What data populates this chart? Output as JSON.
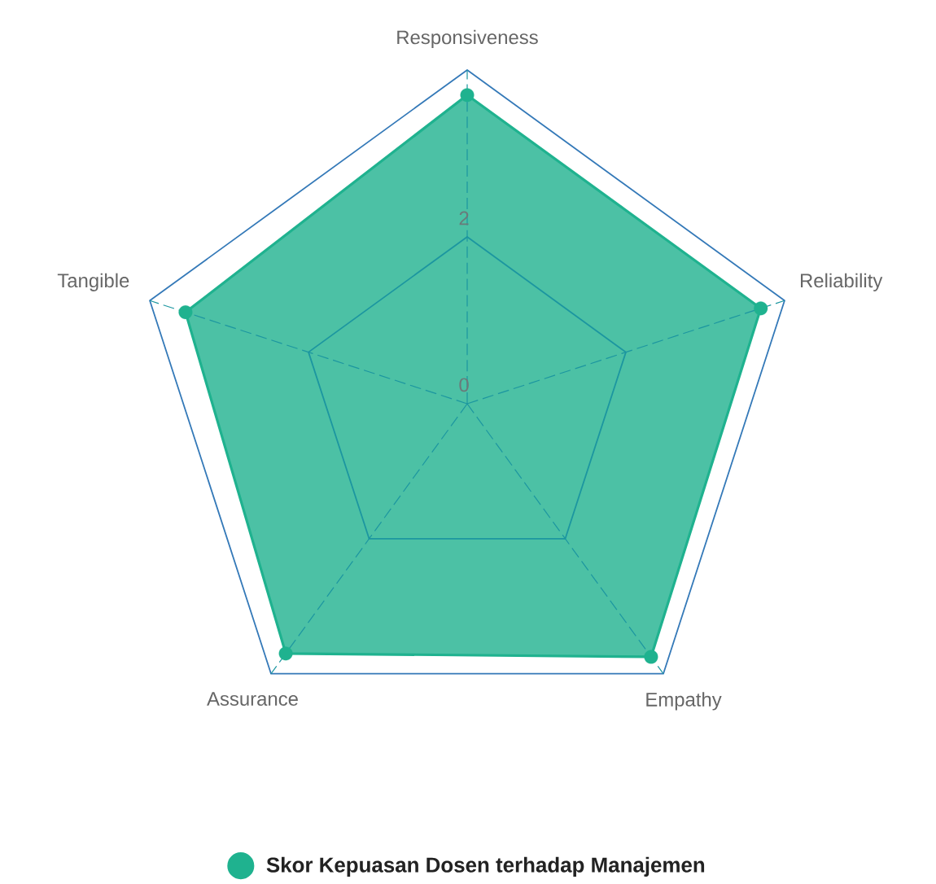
{
  "chart_data": {
    "type": "radar",
    "categories": [
      "Responsiveness",
      "Reliability",
      "Empathy",
      "Assurance",
      "Tangible"
    ],
    "series": [
      {
        "name": "Skor Kepuasan Dosen terhadap Manajemen",
        "color": "#1fb28f",
        "values": [
          3.7,
          3.7,
          3.75,
          3.7,
          3.55
        ]
      }
    ],
    "ylim": [
      0,
      4
    ],
    "yticks": [
      0,
      2
    ],
    "grid": true,
    "legend": "bottom",
    "marker": "circle"
  }
}
